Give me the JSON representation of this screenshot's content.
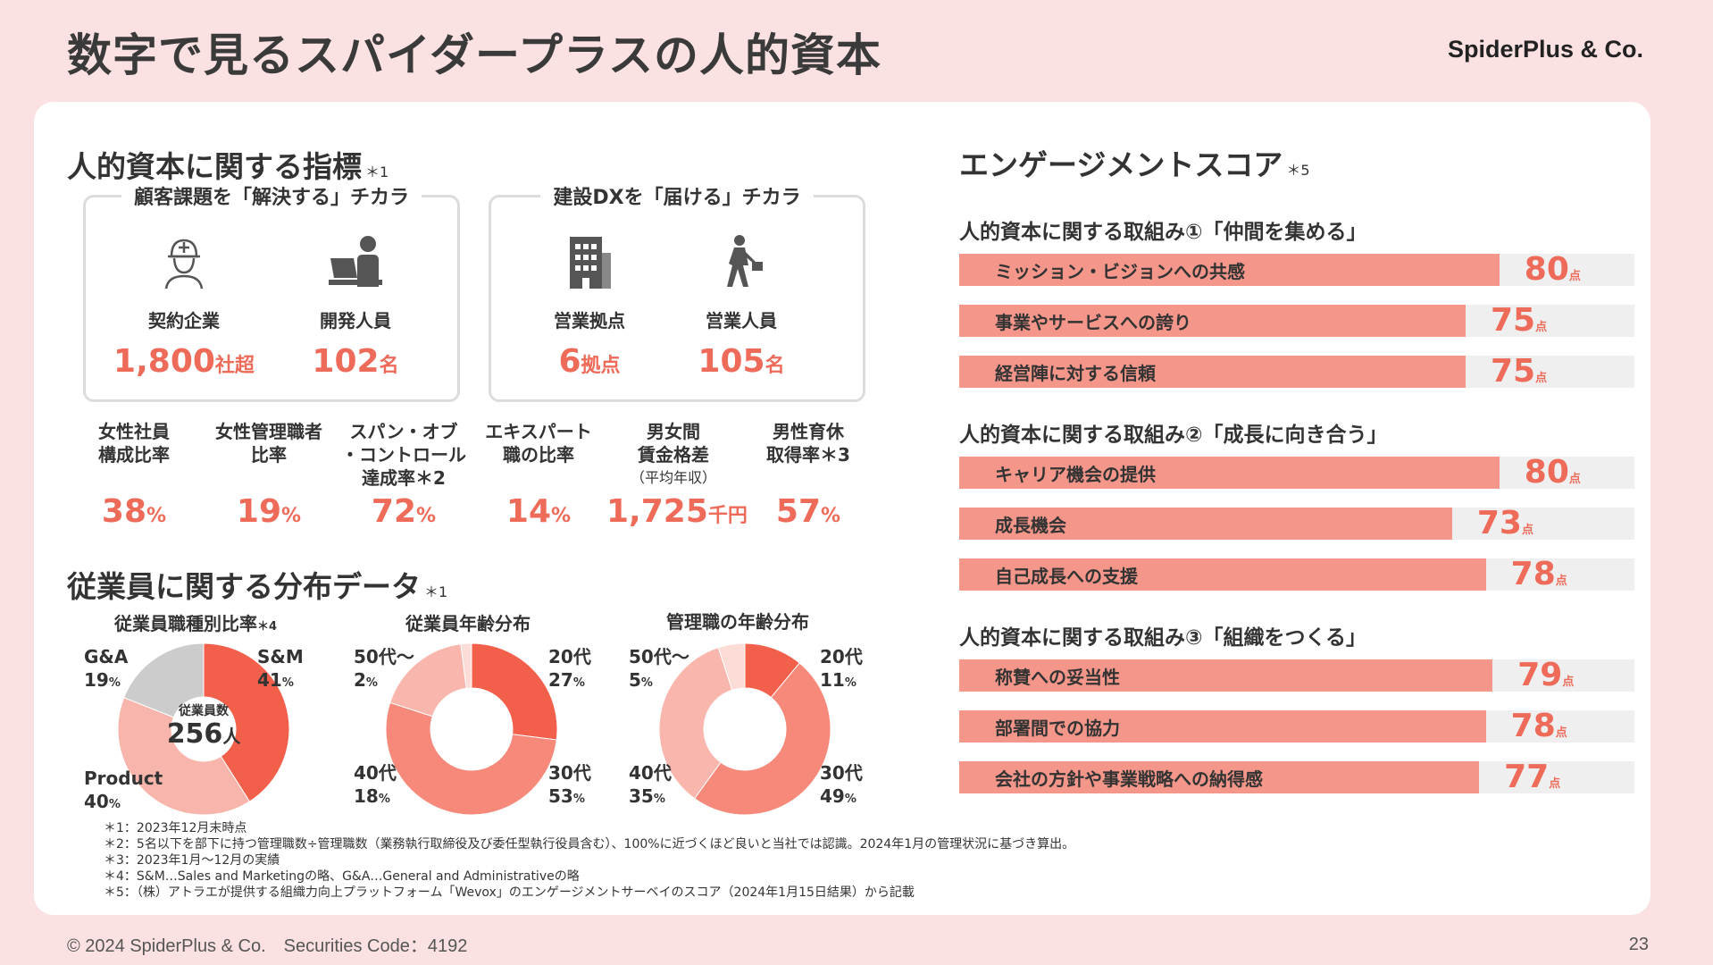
{
  "page": {
    "title": "数字で見るスパイダープラスの人的資本",
    "brand": "SpiderPlus & Co.",
    "copyright": "© 2024 SpiderPlus & Co.　Securities Code：4192",
    "page_number": "23"
  },
  "indicators": {
    "title": "人的資本に関する指標",
    "note_mark": "＊1",
    "box1": {
      "title": "顧客課題を「解決する」チカラ",
      "items": [
        {
          "label": "契約企業",
          "value": "1,800",
          "unit": "社超",
          "icon": "construction-worker-icon"
        },
        {
          "label": "開発人員",
          "value": "102",
          "unit": "名",
          "icon": "developer-at-laptop-icon"
        }
      ]
    },
    "box2": {
      "title": "建設DXを「届ける」チカラ",
      "items": [
        {
          "label": "営業拠点",
          "value": "6",
          "unit": "拠点",
          "icon": "office-building-icon"
        },
        {
          "label": "営業人員",
          "value": "105",
          "unit": "名",
          "icon": "businessman-walking-icon"
        }
      ]
    },
    "metrics": [
      {
        "label": "女性社員\n構成比率",
        "note": "",
        "value": "38",
        "unit": "%"
      },
      {
        "label": "女性管理職者\n比率",
        "note": "",
        "value": "19",
        "unit": "%"
      },
      {
        "label": "スパン・オブ\n・コントロール\n達成率＊2",
        "note": "",
        "value": "72",
        "unit": "%"
      },
      {
        "label": "エキスパート\n職の比率",
        "note": "",
        "value": "14",
        "unit": "%"
      },
      {
        "label": "男女間\n賃金格差",
        "note": "（平均年収）",
        "value": "1,725",
        "unit": "千円"
      },
      {
        "label": "男性育休\n取得率＊3",
        "note": "",
        "value": "57",
        "unit": "%"
      }
    ]
  },
  "distribution": {
    "title": "従業員に関する分布データ",
    "note_mark": "＊1"
  },
  "chart_data": [
    {
      "type": "pie",
      "title": "従業員職種別比率",
      "title_note": "＊4",
      "center_label": "従業員数",
      "center_value": "256",
      "center_unit": "人",
      "slices": [
        {
          "label": "S&M",
          "value": 41,
          "color": "#f2604c"
        },
        {
          "label": "Product",
          "value": 40,
          "color": "#f8b5ab"
        },
        {
          "label": "G&A",
          "value": 19,
          "color": "#cccccc"
        }
      ]
    },
    {
      "type": "pie",
      "title": "従業員年齢分布",
      "slices": [
        {
          "label": "20代",
          "value": 27,
          "color": "#f2604c"
        },
        {
          "label": "30代",
          "value": 53,
          "color": "#f6897a"
        },
        {
          "label": "40代",
          "value": 18,
          "color": "#f9b6ac"
        },
        {
          "label": "50代～",
          "value": 2,
          "color": "#fbdcd7"
        }
      ]
    },
    {
      "type": "pie",
      "title": "管理職の年齢分布",
      "slices": [
        {
          "label": "20代",
          "value": 11,
          "color": "#f2604c"
        },
        {
          "label": "30代",
          "value": 49,
          "color": "#f6897a"
        },
        {
          "label": "40代",
          "value": 35,
          "color": "#f9b6ac"
        },
        {
          "label": "50代～",
          "value": 5,
          "color": "#fbdcd7"
        }
      ]
    },
    {
      "type": "bar",
      "title": "エンゲージメントスコア",
      "title_note": "＊5",
      "unit": "点",
      "ylim": [
        0,
        100
      ],
      "groups": [
        {
          "title": "人的資本に関する取組み①「仲間を集める」",
          "items": [
            {
              "label": "ミッション・ビジョンへの共感",
              "value": 80
            },
            {
              "label": "事業やサービスへの誇り",
              "value": 75
            },
            {
              "label": "経営陣に対する信頼",
              "value": 75
            }
          ]
        },
        {
          "title": "人的資本に関する取組み②「成長に向き合う」",
          "items": [
            {
              "label": "キャリア機会の提供",
              "value": 80
            },
            {
              "label": "成長機会",
              "value": 73
            },
            {
              "label": "自己成長への支援",
              "value": 78
            }
          ]
        },
        {
          "title": "人的資本に関する取組み③「組織をつくる」",
          "items": [
            {
              "label": "称賛への妥当性",
              "value": 79
            },
            {
              "label": "部署間での協力",
              "value": 78
            },
            {
              "label": "会社の方針や事業戦略への納得感",
              "value": 77
            }
          ]
        }
      ]
    }
  ],
  "footnotes": [
    "＊1：2023年12月末時点",
    "＊2：5名以下を部下に持つ管理職数÷管理職数（業務執行取締役及び委任型執行役員含む）、100%に近づくほど良いと当社では認識。2024年1月の管理状況に基づき算出。",
    "＊3：2023年1月～12月の実績",
    "＊4：S&M…Sales and Marketingの略、G&A…General and Administrativeの略",
    "＊5：（株）アトラエが提供する組織力向上プラットフォーム「Wevox」のエンゲージメントサーベイのスコア（2024年1月15日結果）から記載"
  ],
  "colors": {
    "accent": "#ee6b5a",
    "bar": "#f4978a",
    "bar_bg": "#efefef",
    "background": "#fbe1e1"
  }
}
